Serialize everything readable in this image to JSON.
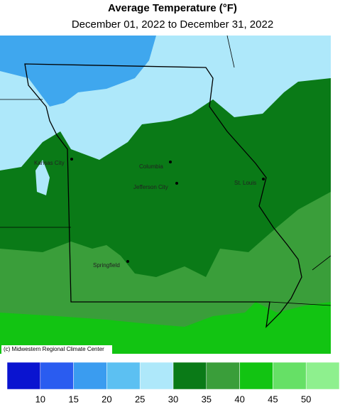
{
  "header": {
    "title": "Average Temperature (°F)",
    "subtitle": "December 01, 2022 to December 31, 2022"
  },
  "map": {
    "cities": [
      "Kansas City",
      "Columbia",
      "Jefferson City",
      "St. Louis",
      "Springfield"
    ],
    "credit": "(c) Midwestern Regional Climate Center"
  },
  "legend": {
    "colors": [
      "#0a14d0",
      "#2a5cf0",
      "#3a9cf0",
      "#5cc0f2",
      "#aee8fa",
      "#0a7a17",
      "#3a9e3a",
      "#12c412",
      "#66e066",
      "#8ef08e"
    ],
    "labels": [
      10,
      15,
      20,
      25,
      30,
      35,
      40,
      45,
      50
    ]
  }
}
